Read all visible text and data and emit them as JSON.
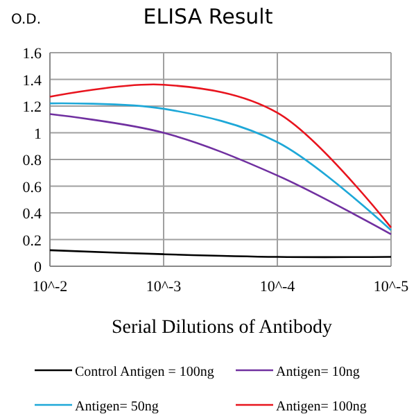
{
  "chart_data": {
    "type": "line",
    "title": "ELISA Result",
    "ylabel": "O.D.",
    "xlabel": "Serial Dilutions of Antibody",
    "categories": [
      "10^-2",
      "10^-3",
      "10^-4",
      "10^-5"
    ],
    "series": [
      {
        "name": "Control Antigen = 100ng",
        "color": "#000000",
        "values": [
          0.12,
          0.09,
          0.07,
          0.07
        ]
      },
      {
        "name": "Antigen= 10ng",
        "color": "#7030a0",
        "values": [
          1.14,
          1.0,
          0.68,
          0.24
        ]
      },
      {
        "name": "Antigen= 50ng",
        "color": "#1ea8d8",
        "values": [
          1.22,
          1.18,
          0.93,
          0.27
        ]
      },
      {
        "name": "Antigen= 100ng",
        "color": "#e8141e",
        "values": [
          1.27,
          1.36,
          1.15,
          0.29
        ]
      }
    ],
    "ylim": [
      0,
      1.6
    ],
    "yticks": [
      0,
      0.2,
      0.4,
      0.6,
      0.8,
      1,
      1.2,
      1.4,
      1.6
    ],
    "grid": true,
    "legend": "bottom",
    "marker": "none",
    "line_style": "solid"
  }
}
